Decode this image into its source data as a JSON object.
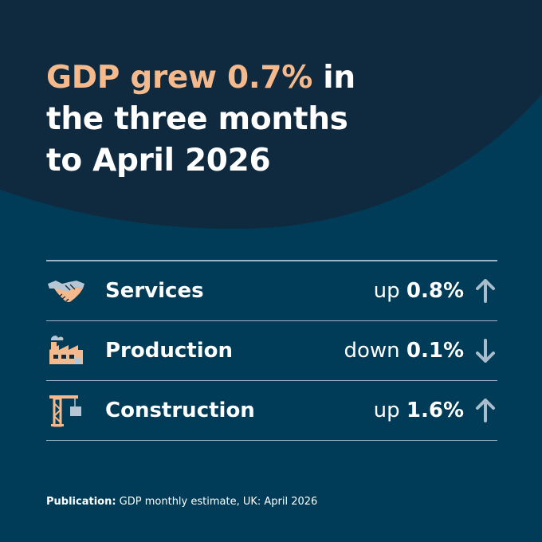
{
  "headline": {
    "highlight": "GDP grew 0.7%",
    "line1_rest": " in",
    "line2": "the three months",
    "line3": "to April 2026"
  },
  "rows": [
    {
      "icon": "handshake-icon",
      "label": "Services",
      "direction": "up",
      "value": "0.8%",
      "arrow": "arrow-up-icon"
    },
    {
      "icon": "factory-icon",
      "label": "Production",
      "direction": "down",
      "value": "0.1%",
      "arrow": "arrow-down-icon"
    },
    {
      "icon": "crane-icon",
      "label": "Construction",
      "direction": "up",
      "value": "1.6%",
      "arrow": "arrow-up-icon"
    }
  ],
  "footer": {
    "label": "Publication:",
    "text": " GDP monthly estimate, UK: April 2026"
  },
  "colors": {
    "background": "#003c57",
    "dark_shape": "#0f2a3f",
    "highlight": "#f4b98c",
    "icon_peach": "#f4b98c",
    "icon_grey": "#b7c6d3",
    "arrow": "#a9bccb",
    "rule": "#9fb3c2"
  }
}
